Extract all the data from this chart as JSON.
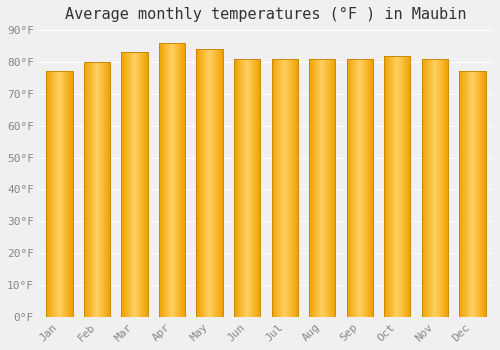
{
  "title": "Average monthly temperatures (°F ) in Maubin",
  "months": [
    "Jan",
    "Feb",
    "Mar",
    "Apr",
    "May",
    "Jun",
    "Jul",
    "Aug",
    "Sep",
    "Oct",
    "Nov",
    "Dec"
  ],
  "values": [
    77,
    80,
    83,
    86,
    84,
    81,
    81,
    81,
    81,
    82,
    81,
    77
  ],
  "bar_color_center": "#FFD060",
  "bar_color_edge": "#F0A000",
  "bar_edge_color": "#C8880A",
  "ylim": [
    0,
    90
  ],
  "yticks": [
    0,
    10,
    20,
    30,
    40,
    50,
    60,
    70,
    80,
    90
  ],
  "background_color": "#f0f0f0",
  "grid_color": "#ffffff",
  "title_fontsize": 11,
  "tick_fontsize": 8,
  "bar_width": 0.7
}
